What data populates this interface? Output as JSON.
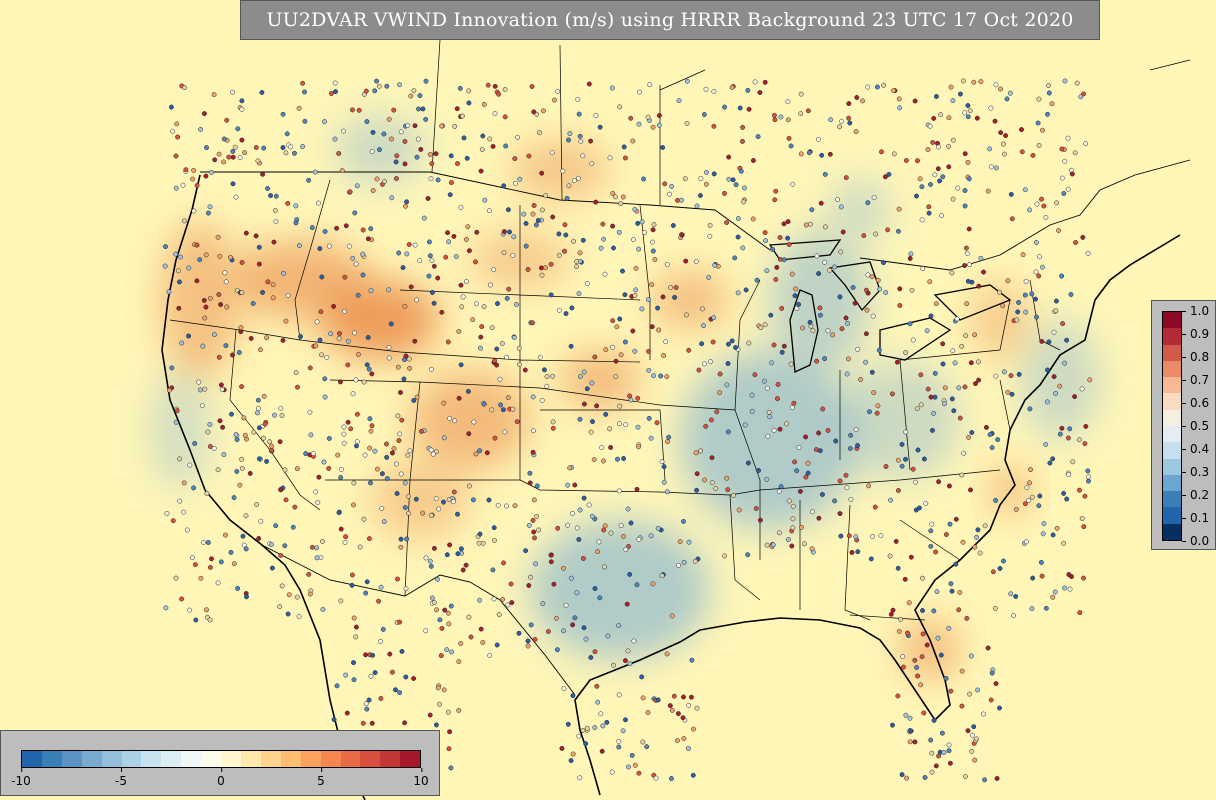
{
  "title": "UU2DVAR VWIND Innovation (m/s) using HRRR Background 23 UTC 17 Oct 2020",
  "innovation_colorbar": {
    "ticks": [
      "-10",
      "-5",
      "0",
      "5",
      "10"
    ],
    "colors": [
      "#2166ac",
      "#3a7fb8",
      "#5b93c4",
      "#7aa9cf",
      "#93bfdc",
      "#abd1e6",
      "#c6e3ef",
      "#ddeef3",
      "#eff7f7",
      "#fbfbe9",
      "#fff5cf",
      "#fee8ab",
      "#fed48c",
      "#fdbd72",
      "#fba35e",
      "#f5864f",
      "#e86b46",
      "#d8503d",
      "#c33734",
      "#a7162b"
    ]
  },
  "probability_colorbar": {
    "ticks": [
      "1.0",
      "0.9",
      "0.8",
      "0.7",
      "0.6",
      "0.5",
      "0.4",
      "0.3",
      "0.2",
      "0.1",
      "0.0"
    ],
    "colors": [
      "#053061",
      "#2166ac",
      "#3b7fb9",
      "#6aa6cf",
      "#9cc8e0",
      "#c5e0ec",
      "#e3eef3",
      "#f5efe3",
      "#fbdcc1",
      "#f6b994",
      "#e98a68",
      "#d25a4b",
      "#b52b35",
      "#8b0a25"
    ]
  },
  "map_layers": {
    "background_color": "#fff6b8",
    "positive_field_color": "#e8803e",
    "negative_field_color": "#6fa8d6",
    "boundary_color": "#000000"
  }
}
